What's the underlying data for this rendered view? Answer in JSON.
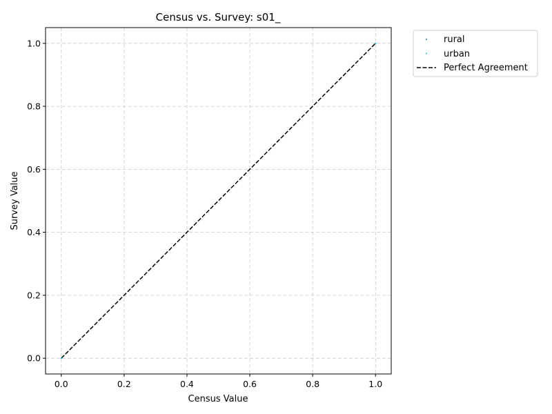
{
  "chart_data": {
    "type": "scatter",
    "title": "Census vs. Survey: s01_",
    "xlabel": "Census Value",
    "ylabel": "Survey Value",
    "xlim": [
      -0.05,
      1.05
    ],
    "ylim": [
      -0.05,
      1.05
    ],
    "xticks": [
      "0.0",
      "0.2",
      "0.4",
      "0.6",
      "0.8",
      "1.0"
    ],
    "yticks": [
      "0.0",
      "0.2",
      "0.4",
      "0.6",
      "0.8",
      "1.0"
    ],
    "grid": true,
    "legend_position": "outside-top-right",
    "series": [
      {
        "name": "rural",
        "color": "#1f77b4",
        "points": [
          [
            0,
            0
          ],
          [
            1,
            1
          ]
        ]
      },
      {
        "name": "urban",
        "color": "#17becf",
        "points": [
          [
            0,
            0
          ],
          [
            1,
            1
          ]
        ]
      }
    ],
    "reference_line": {
      "name": "Perfect Agreement",
      "color": "#000000",
      "style": "dashed",
      "points": [
        [
          0,
          0
        ],
        [
          1,
          1
        ]
      ]
    }
  }
}
